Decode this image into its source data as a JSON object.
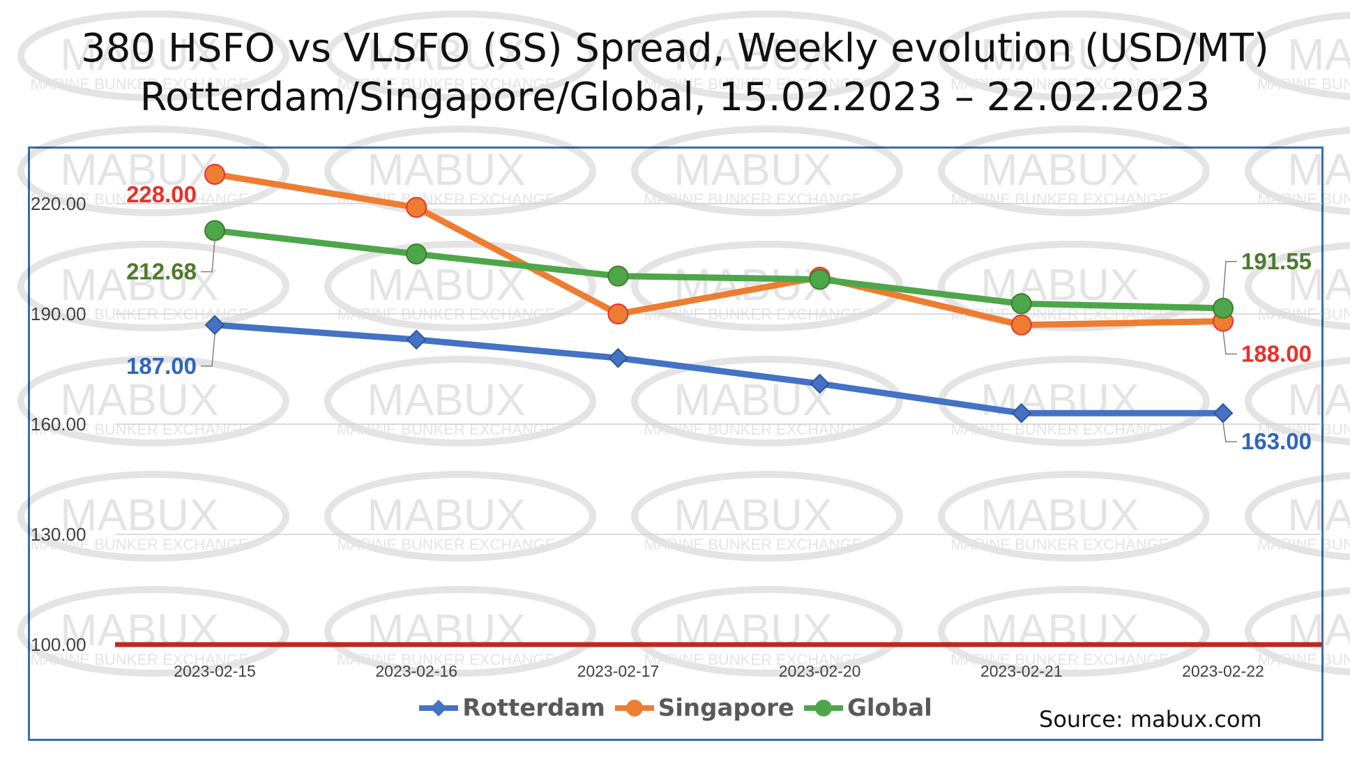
{
  "title_line1": "380 HSFO vs VLSFO (SS) Spread, Weekly evolution (USD/MT)",
  "title_line2": "Rotterdam/Singapore/Global, 15.02.2023 – 22.02.2023",
  "source": "Source: mabux.com",
  "watermark": {
    "brand": "MABUX",
    "tagline": "MARINE BUNKER EXCHANGE"
  },
  "chart_data": {
    "type": "line",
    "categories": [
      "2023-02-15",
      "2023-02-16",
      "2023-02-17",
      "2023-02-20",
      "2023-02-21",
      "2023-02-22"
    ],
    "y_ticks": [
      "100.00",
      "130.00",
      "160.00",
      "190.00",
      "220.00"
    ],
    "ylim": [
      100,
      230
    ],
    "grid": true,
    "legend_position": "bottom",
    "reference_line": {
      "value": 100,
      "color": "#c0281f"
    },
    "series": [
      {
        "name": "Rotterdam",
        "values": [
          187,
          183,
          178,
          171,
          163,
          163
        ],
        "color": "#4472c4",
        "marker": "diamond",
        "labels": [
          {
            "index": 0,
            "text": "187.00"
          },
          {
            "index": 5,
            "text": "163.00"
          }
        ],
        "label_color": "#2e66b8"
      },
      {
        "name": "Singapore",
        "values": [
          228,
          219,
          190,
          200,
          187,
          188
        ],
        "color": "#ed7d31",
        "marker": "circle",
        "labels": [
          {
            "index": 0,
            "text": "228.00"
          },
          {
            "index": 5,
            "text": "188.00"
          }
        ],
        "label_color": "#e8302a"
      },
      {
        "name": "Global",
        "values": [
          212.68,
          206.3,
          200.3,
          199.4,
          192.8,
          191.55
        ],
        "color": "#4ea64a",
        "marker": "circle",
        "labels": [
          {
            "index": 0,
            "text": "212.68"
          },
          {
            "index": 5,
            "text": "191.55"
          }
        ],
        "label_color": "#4e7a2c"
      }
    ]
  }
}
